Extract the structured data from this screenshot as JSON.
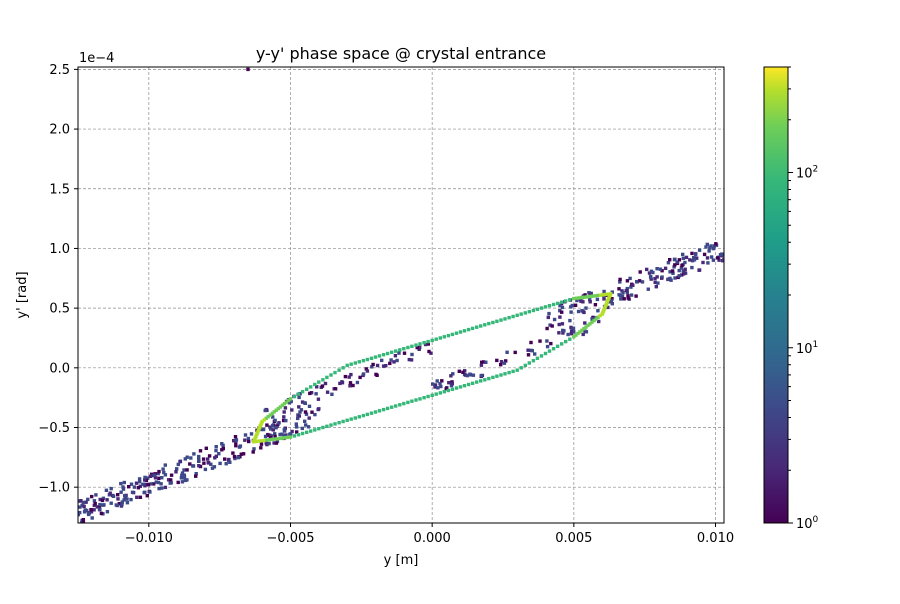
{
  "chart_data": {
    "type": "heatmap",
    "title": "y-y' phase space @ crystal entrance",
    "xlabel": "y [m]",
    "ylabel": "y' [rad]",
    "y_offset_text": "1e−4",
    "xlim": [
      -0.0125,
      0.0103
    ],
    "ylim": [
      -0.00013,
      0.000252
    ],
    "grid": true,
    "x_ticks": [
      -0.01,
      -0.005,
      0.0,
      0.005,
      0.01
    ],
    "x_tick_labels": [
      "−0.010",
      "−0.005",
      "0.000",
      "0.005",
      "0.010"
    ],
    "y_ticks": [
      -0.0001,
      -5e-05,
      0.0,
      5e-05,
      0.0001,
      0.00015,
      0.0002,
      0.00025
    ],
    "y_tick_labels": [
      "−1.0",
      "−0.5",
      "0.0",
      "0.5",
      "1.0",
      "1.5",
      "2.0",
      "2.5"
    ],
    "colorbar": {
      "scale": "log",
      "colormap": "viridis",
      "range": [
        1,
        400
      ],
      "major_ticks": [
        1,
        10,
        100
      ],
      "major_tick_labels": [
        "10",
        "10",
        "10"
      ],
      "major_tick_exponents": [
        "0",
        "1",
        "2"
      ]
    },
    "ellipse_ring": {
      "center": [
        0.0,
        0.0
      ],
      "bin_counts_range": [
        40,
        200
      ],
      "points": [
        [
          0.0063,
          6.2e-05
        ],
        [
          0.005,
          5.8e-05
        ],
        [
          0.003,
          4.4e-05
        ],
        [
          0.001,
          3e-05
        ],
        [
          -0.001,
          1.6e-05
        ],
        [
          -0.003,
          2e-06
        ],
        [
          -0.005,
          -2.6e-05
        ],
        [
          -0.006,
          -4.5e-05
        ],
        [
          -0.0063,
          -6.2e-05
        ],
        [
          -0.005,
          -5.8e-05
        ],
        [
          -0.003,
          -4.4e-05
        ],
        [
          -0.001,
          -3e-05
        ],
        [
          0.001,
          -1.6e-05
        ],
        [
          0.003,
          -2e-06
        ],
        [
          0.005,
          2.6e-05
        ],
        [
          0.006,
          4.5e-05
        ]
      ]
    },
    "halo_band": {
      "description_counts": "sparse counts 1-5",
      "axis_x_range": [
        -0.0125,
        0.0103
      ],
      "slope": 0.0097,
      "width_y": 1e-05
    },
    "outlier_point": [
      -0.0065,
      0.00025
    ]
  }
}
